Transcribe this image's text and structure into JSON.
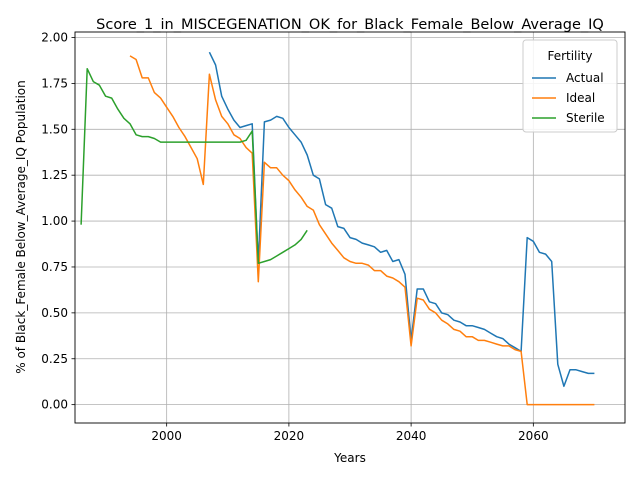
{
  "chart_data": {
    "type": "line",
    "title": "Score_1_in_MISCEGENATION_OK_for_Black_Female_Below_Average_IQ",
    "xlabel": "Years",
    "ylabel": "% of Black_Female Below_Average_IQ Population",
    "xlim": [
      1985,
      2075
    ],
    "ylim": [
      -0.1,
      2.03
    ],
    "xticks": [
      2000,
      2020,
      2040,
      2060
    ],
    "yticks": [
      0.0,
      0.25,
      0.5,
      0.75,
      1.0,
      1.25,
      1.5,
      1.75,
      2.0
    ],
    "grid": true,
    "legend": {
      "title": "Fertility",
      "placement": "top-right"
    },
    "series": [
      {
        "name": "Actual",
        "color": "#1f77b4",
        "x": [
          2007,
          2008,
          2009,
          2010,
          2011,
          2012,
          2013,
          2014,
          2015,
          2016,
          2017,
          2018,
          2019,
          2020,
          2021,
          2022,
          2023,
          2024,
          2025,
          2026,
          2027,
          2028,
          2029,
          2030,
          2031,
          2032,
          2033,
          2034,
          2035,
          2036,
          2037,
          2038,
          2039,
          2040,
          2041,
          2042,
          2043,
          2044,
          2045,
          2046,
          2047,
          2048,
          2049,
          2050,
          2051,
          2052,
          2053,
          2054,
          2055,
          2056,
          2057,
          2058,
          2059,
          2060,
          2061,
          2062,
          2063,
          2064,
          2065,
          2066,
          2067,
          2068,
          2069,
          2070
        ],
        "y": [
          1.92,
          1.85,
          1.68,
          1.61,
          1.55,
          1.51,
          1.52,
          1.53,
          0.77,
          1.54,
          1.55,
          1.57,
          1.56,
          1.51,
          1.47,
          1.43,
          1.36,
          1.25,
          1.23,
          1.09,
          1.07,
          0.97,
          0.96,
          0.91,
          0.9,
          0.88,
          0.87,
          0.86,
          0.83,
          0.84,
          0.78,
          0.79,
          0.71,
          0.35,
          0.63,
          0.63,
          0.56,
          0.55,
          0.5,
          0.49,
          0.46,
          0.45,
          0.43,
          0.43,
          0.42,
          0.41,
          0.39,
          0.37,
          0.36,
          0.33,
          0.31,
          0.29,
          0.91,
          0.89,
          0.83,
          0.82,
          0.78,
          0.22,
          0.1,
          0.19,
          0.19,
          0.18,
          0.17,
          0.17
        ]
      },
      {
        "name": "Ideal",
        "color": "#ff7f0e",
        "x": [
          1994,
          1995,
          1996,
          1997,
          1998,
          1999,
          2000,
          2001,
          2002,
          2003,
          2004,
          2005,
          2006,
          2007,
          2008,
          2009,
          2010,
          2011,
          2012,
          2013,
          2014,
          2015,
          2016,
          2017,
          2018,
          2019,
          2020,
          2021,
          2022,
          2023,
          2024,
          2025,
          2026,
          2027,
          2028,
          2029,
          2030,
          2031,
          2032,
          2033,
          2034,
          2035,
          2036,
          2037,
          2038,
          2039,
          2040,
          2041,
          2042,
          2043,
          2044,
          2045,
          2046,
          2047,
          2048,
          2049,
          2050,
          2051,
          2052,
          2053,
          2054,
          2055,
          2056,
          2057,
          2058,
          2059,
          2060,
          2061,
          2062,
          2063,
          2064,
          2065,
          2066,
          2067,
          2068,
          2069,
          2070
        ],
        "y": [
          1.9,
          1.88,
          1.78,
          1.78,
          1.7,
          1.67,
          1.62,
          1.57,
          1.51,
          1.46,
          1.4,
          1.34,
          1.2,
          1.8,
          1.66,
          1.57,
          1.53,
          1.47,
          1.45,
          1.4,
          1.37,
          0.67,
          1.32,
          1.29,
          1.29,
          1.25,
          1.22,
          1.17,
          1.13,
          1.08,
          1.06,
          0.98,
          0.93,
          0.88,
          0.84,
          0.8,
          0.78,
          0.77,
          0.77,
          0.76,
          0.73,
          0.73,
          0.7,
          0.69,
          0.67,
          0.64,
          0.32,
          0.58,
          0.57,
          0.52,
          0.5,
          0.46,
          0.44,
          0.41,
          0.4,
          0.37,
          0.37,
          0.35,
          0.35,
          0.34,
          0.33,
          0.32,
          0.32,
          0.3,
          0.29,
          0.0,
          0.0,
          0.0,
          0.0,
          0.0,
          0.0,
          0.0,
          0.0,
          0.0,
          0.0,
          0.0,
          0.0
        ]
      },
      {
        "name": "Sterile",
        "color": "#2ca02c",
        "x": [
          1986,
          1987,
          1988,
          1989,
          1990,
          1991,
          1992,
          1993,
          1994,
          1995,
          1996,
          1997,
          1998,
          1999,
          2000,
          2001,
          2002,
          2003,
          2004,
          2005,
          2006,
          2007,
          2008,
          2009,
          2010,
          2011,
          2012,
          2013,
          2014,
          2015,
          2016,
          2017,
          2018,
          2019,
          2020,
          2021,
          2022,
          2023
        ],
        "y": [
          0.98,
          1.83,
          1.76,
          1.74,
          1.68,
          1.67,
          1.61,
          1.56,
          1.53,
          1.47,
          1.46,
          1.46,
          1.45,
          1.43,
          1.43,
          1.43,
          1.43,
          1.43,
          1.43,
          1.43,
          1.43,
          1.43,
          1.43,
          1.43,
          1.43,
          1.43,
          1.43,
          1.44,
          1.49,
          0.77,
          0.78,
          0.79,
          0.81,
          0.83,
          0.85,
          0.87,
          0.9,
          0.95
        ]
      }
    ]
  }
}
